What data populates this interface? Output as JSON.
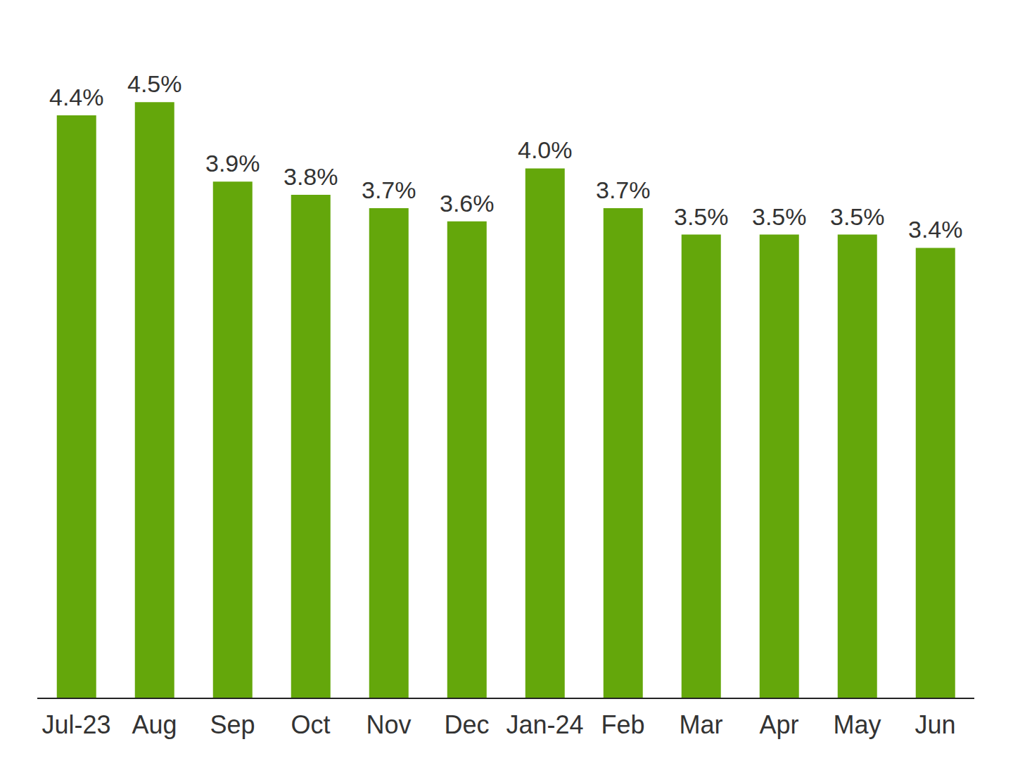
{
  "chart_data": {
    "type": "bar",
    "categories": [
      "Jul-23",
      "Aug",
      "Sep",
      "Oct",
      "Nov",
      "Dec",
      "Jan-24",
      "Feb",
      "Mar",
      "Apr",
      "May",
      "Jun"
    ],
    "values": [
      4.4,
      4.5,
      3.9,
      3.8,
      3.7,
      3.6,
      4.0,
      3.7,
      3.5,
      3.5,
      3.5,
      3.4
    ],
    "value_labels": [
      "4.4%",
      "4.5%",
      "3.9%",
      "3.8%",
      "3.7%",
      "3.6%",
      "4.0%",
      "3.7%",
      "3.5%",
      "3.5%",
      "3.5%",
      "3.4%"
    ],
    "color": "#64a70b",
    "ylim": [
      0,
      5
    ],
    "grid": false,
    "data_labels": true,
    "tick_labels": "x"
  }
}
